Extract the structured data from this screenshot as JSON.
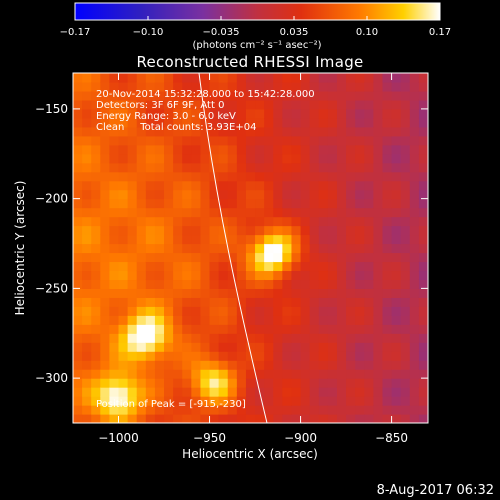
{
  "colorbar": {
    "ticks": [
      "-0.17",
      "-0.10",
      "-0.035",
      "0.035",
      "0.10",
      "0.17"
    ],
    "unit_label": "(photons cm⁻² s⁻¹ asec⁻²)",
    "range": [
      -0.17,
      0.17
    ]
  },
  "title": "Reconstructed RHESSI Image",
  "info": {
    "time": "20-Nov-2014 15:32:28.000 to 15:42:28.000",
    "detectors": "Detectors: 3F 6F 9F, Att 0",
    "energy": "Energy Range: 3.0 - 6.0 keV",
    "clean": "Clean     Total counts: 3.93E+04",
    "peak": "Position of Peak = [-915,-230]"
  },
  "chart_data": {
    "type": "heatmap",
    "title": "Reconstructed RHESSI Image",
    "xlabel": "Heliocentric X (arcsec)",
    "ylabel": "Heliocentric Y (arcsec)",
    "xlim": [
      -1025,
      -830
    ],
    "ylim": [
      -325,
      -130
    ],
    "x_ticks": [
      -1000,
      -950,
      -900,
      -850
    ],
    "y_ticks": [
      -300,
      -250,
      -200,
      -150
    ],
    "x_tick_labels": [
      "−1000",
      "−950",
      "−900",
      "−850"
    ],
    "y_tick_labels": [
      "−300",
      "−250",
      "−200",
      "−150"
    ],
    "peak": [
      -915,
      -230
    ],
    "sources": [
      {
        "x": -915,
        "y": -230,
        "amp": 0.17
      },
      {
        "x": -985,
        "y": -277,
        "amp": 0.14
      },
      {
        "x": -1000,
        "y": -310,
        "amp": 0.14
      },
      {
        "x": -948,
        "y": -302,
        "amp": 0.12
      }
    ]
  },
  "footer_date": "8-Aug-2017 06:32"
}
